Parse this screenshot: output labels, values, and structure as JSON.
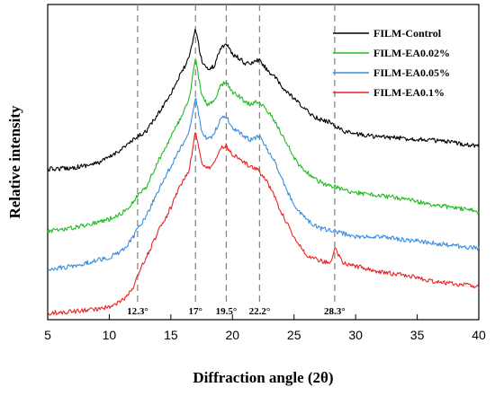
{
  "chart_data": {
    "type": "line",
    "xlabel": "Diffraction angle (2θ)",
    "ylabel": "Relative intensity",
    "xlim": [
      5,
      40
    ],
    "xticks": [
      5,
      10,
      15,
      20,
      25,
      30,
      35,
      40
    ],
    "ylim": [
      0,
      1
    ],
    "y_ticks_shown": false,
    "grid": false,
    "legend_position": "top-right",
    "reference_lines": [
      {
        "x": 12.3,
        "label": "12.3°"
      },
      {
        "x": 17,
        "label": "17°"
      },
      {
        "x": 19.5,
        "label": "19.5°"
      },
      {
        "x": 22.2,
        "label": "22.2°"
      },
      {
        "x": 28.3,
        "label": "28.3°"
      }
    ],
    "series": [
      {
        "name": "FILM-Control",
        "color": "#000000",
        "x": [
          5,
          7,
          9,
          10,
          11,
          12,
          12.3,
          13,
          14,
          15,
          15.5,
          16,
          16.5,
          17,
          17.5,
          18,
          18.5,
          19,
          19.5,
          20,
          20.5,
          21,
          21.5,
          22,
          22.2,
          22.8,
          23.5,
          24,
          24.5,
          25,
          25.5,
          26,
          27,
          28,
          28.3,
          29,
          30,
          32,
          34,
          36,
          38,
          40
        ],
        "y": [
          0.5,
          0.505,
          0.52,
          0.54,
          0.57,
          0.6,
          0.61,
          0.63,
          0.69,
          0.76,
          0.8,
          0.84,
          0.88,
          0.98,
          0.87,
          0.84,
          0.85,
          0.91,
          0.93,
          0.89,
          0.88,
          0.86,
          0.86,
          0.87,
          0.87,
          0.84,
          0.81,
          0.78,
          0.76,
          0.74,
          0.72,
          0.7,
          0.67,
          0.66,
          0.65,
          0.63,
          0.62,
          0.61,
          0.605,
          0.6,
          0.59,
          0.58
        ]
      },
      {
        "name": "FILM-EA0.02%",
        "color": "#22bb22",
        "x": [
          5,
          7,
          9,
          10,
          11,
          12,
          12.3,
          13,
          14,
          15,
          15.5,
          16,
          16.5,
          17,
          17.5,
          18,
          18.5,
          19,
          19.5,
          20,
          20.5,
          21,
          21.5,
          22,
          22.2,
          22.8,
          23.5,
          24,
          24.5,
          25,
          25.5,
          26,
          27,
          28,
          28.3,
          29,
          30,
          32,
          34,
          36,
          38,
          40
        ],
        "y": [
          0.29,
          0.3,
          0.32,
          0.33,
          0.35,
          0.39,
          0.41,
          0.44,
          0.53,
          0.61,
          0.65,
          0.69,
          0.74,
          0.88,
          0.75,
          0.72,
          0.73,
          0.78,
          0.8,
          0.76,
          0.75,
          0.73,
          0.72,
          0.73,
          0.73,
          0.7,
          0.66,
          0.62,
          0.58,
          0.54,
          0.51,
          0.49,
          0.46,
          0.44,
          0.44,
          0.43,
          0.42,
          0.41,
          0.4,
          0.38,
          0.37,
          0.355
        ]
      },
      {
        "name": "FILM-EA0.05%",
        "color": "#3a8ee0",
        "x": [
          5,
          7,
          9,
          10,
          11,
          12,
          12.3,
          13,
          14,
          15,
          15.5,
          16,
          16.5,
          17,
          17.5,
          18,
          18.5,
          19,
          19.5,
          20,
          20.5,
          21,
          21.5,
          22,
          22.2,
          22.8,
          23.5,
          24,
          24.5,
          25,
          25.5,
          26,
          27,
          28,
          28.3,
          29,
          30,
          32,
          34,
          36,
          38,
          40
        ],
        "y": [
          0.16,
          0.17,
          0.19,
          0.2,
          0.22,
          0.27,
          0.3,
          0.34,
          0.43,
          0.51,
          0.55,
          0.59,
          0.63,
          0.75,
          0.63,
          0.6,
          0.62,
          0.67,
          0.68,
          0.64,
          0.63,
          0.61,
          0.6,
          0.61,
          0.61,
          0.57,
          0.52,
          0.47,
          0.42,
          0.38,
          0.35,
          0.33,
          0.3,
          0.29,
          0.29,
          0.28,
          0.27,
          0.27,
          0.26,
          0.25,
          0.24,
          0.23
        ]
      },
      {
        "name": "FILM-EA0.1%",
        "color": "#ee2222",
        "x": [
          5,
          7,
          9,
          10,
          11,
          12,
          12.3,
          13,
          14,
          15,
          15.5,
          16,
          16.5,
          17,
          17.5,
          18,
          18.5,
          19,
          19.5,
          20,
          20.5,
          21,
          21.5,
          22,
          22.2,
          22.8,
          23.5,
          24,
          24.5,
          25,
          25.5,
          26,
          27,
          28,
          28.3,
          29,
          30,
          32,
          34,
          36,
          38,
          40
        ],
        "y": [
          0.01,
          0.015,
          0.025,
          0.03,
          0.05,
          0.1,
          0.14,
          0.2,
          0.29,
          0.37,
          0.42,
          0.46,
          0.5,
          0.63,
          0.52,
          0.5,
          0.52,
          0.57,
          0.58,
          0.55,
          0.54,
          0.52,
          0.51,
          0.5,
          0.49,
          0.46,
          0.4,
          0.35,
          0.31,
          0.27,
          0.24,
          0.21,
          0.19,
          0.18,
          0.23,
          0.18,
          0.17,
          0.15,
          0.14,
          0.12,
          0.11,
          0.1
        ]
      }
    ]
  }
}
